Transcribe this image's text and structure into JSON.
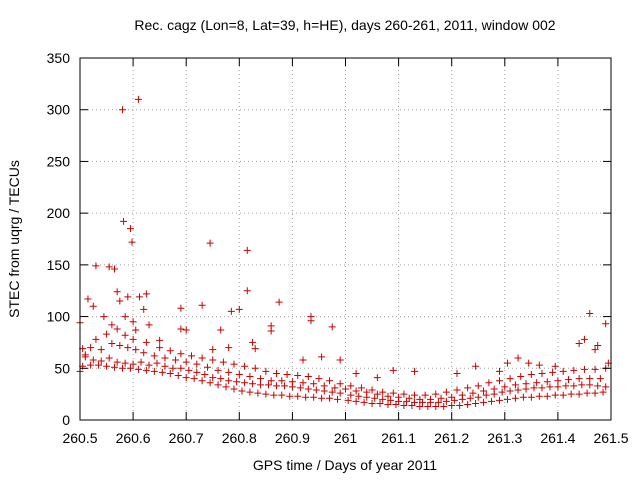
{
  "chart_data": {
    "type": "scatter",
    "title": "Rec. cagz (Lon=8, Lat=39, h=HE), days 260-261, 2011, window 002",
    "xlabel": "GPS time / Days of year 2011",
    "ylabel": "STEC from uqrg / TECUs",
    "xlim": [
      260.5,
      261.5
    ],
    "ylim": [
      0,
      350
    ],
    "x_ticks": [
      260.5,
      260.6,
      260.7,
      260.8,
      260.9,
      261,
      261.1,
      261.2,
      261.3,
      261.4,
      261.5
    ],
    "x_tick_labels": [
      "260.5",
      "260.6",
      "260.7",
      "260.8",
      "260.9",
      "261",
      "261.1",
      "261.2",
      "261.3",
      "261.4",
      "261.5"
    ],
    "y_ticks": [
      0,
      50,
      100,
      150,
      200,
      250,
      300,
      350
    ],
    "y_tick_labels": [
      "0",
      "50",
      "100",
      "150",
      "200",
      "250",
      "300",
      "350"
    ],
    "grid": true,
    "grid_style": "dotted",
    "legend": "none",
    "marker": "plus",
    "marker_color": "#cc0000",
    "series": [
      {
        "points": [
          [
            260.505,
            52
          ],
          [
            260.52,
            53
          ],
          [
            260.535,
            53
          ],
          [
            260.55,
            52
          ],
          [
            260.565,
            51
          ],
          [
            260.58,
            50
          ],
          [
            260.595,
            50
          ],
          [
            260.61,
            49
          ],
          [
            260.625,
            48
          ],
          [
            260.64,
            47
          ],
          [
            260.655,
            46
          ],
          [
            260.67,
            45
          ],
          [
            260.685,
            43
          ],
          [
            260.7,
            41
          ],
          [
            260.715,
            40
          ],
          [
            260.73,
            38
          ],
          [
            260.745,
            36
          ],
          [
            260.76,
            34
          ],
          [
            260.775,
            32
          ],
          [
            260.79,
            30
          ],
          [
            260.805,
            28
          ],
          [
            260.82,
            27
          ],
          [
            260.835,
            26
          ],
          [
            260.85,
            25
          ],
          [
            260.865,
            24
          ],
          [
            260.88,
            24
          ],
          [
            260.895,
            23
          ],
          [
            260.91,
            23
          ],
          [
            260.925,
            22
          ],
          [
            260.94,
            22
          ],
          [
            260.955,
            21
          ],
          [
            260.97,
            21
          ],
          [
            260.985,
            20
          ],
          [
            261.005,
            19
          ],
          [
            261.02,
            18
          ],
          [
            261.035,
            17
          ],
          [
            261.05,
            16
          ],
          [
            261.065,
            16
          ],
          [
            261.08,
            15
          ],
          [
            261.095,
            15
          ],
          [
            261.11,
            14
          ],
          [
            261.125,
            14
          ],
          [
            261.14,
            13
          ],
          [
            261.155,
            13
          ],
          [
            261.17,
            13
          ],
          [
            261.185,
            13
          ],
          [
            261.2,
            14
          ],
          [
            261.215,
            14
          ],
          [
            261.23,
            15
          ],
          [
            261.245,
            16
          ],
          [
            261.26,
            17
          ],
          [
            261.275,
            18
          ],
          [
            261.29,
            19
          ],
          [
            261.305,
            20
          ],
          [
            261.32,
            21
          ],
          [
            261.335,
            22
          ],
          [
            261.35,
            22
          ],
          [
            261.365,
            23
          ],
          [
            261.38,
            23
          ],
          [
            261.395,
            24
          ],
          [
            261.41,
            24
          ],
          [
            261.425,
            25
          ],
          [
            261.44,
            25
          ],
          [
            261.455,
            26
          ],
          [
            261.47,
            26
          ],
          [
            261.485,
            27
          ],
          [
            260.51,
            61
          ],
          [
            260.525,
            58
          ],
          [
            260.54,
            57
          ],
          [
            260.555,
            60
          ],
          [
            260.57,
            56
          ],
          [
            260.585,
            55
          ],
          [
            260.6,
            54
          ],
          [
            260.615,
            56
          ],
          [
            260.63,
            53
          ],
          [
            260.645,
            55
          ],
          [
            260.66,
            52
          ],
          [
            260.675,
            50
          ],
          [
            260.69,
            50
          ],
          [
            260.705,
            48
          ],
          [
            260.72,
            46
          ],
          [
            260.735,
            44
          ],
          [
            260.75,
            41
          ],
          [
            260.765,
            40
          ],
          [
            260.78,
            38
          ],
          [
            260.795,
            37
          ],
          [
            260.81,
            36
          ],
          [
            260.825,
            35
          ],
          [
            260.84,
            34
          ],
          [
            260.855,
            34
          ],
          [
            260.87,
            33
          ],
          [
            260.885,
            33
          ],
          [
            260.9,
            32
          ],
          [
            260.915,
            31
          ],
          [
            260.93,
            30
          ],
          [
            260.945,
            29
          ],
          [
            260.96,
            28
          ],
          [
            260.975,
            27
          ],
          [
            260.99,
            26
          ],
          [
            261.01,
            24
          ],
          [
            261.025,
            23
          ],
          [
            261.04,
            22
          ],
          [
            261.055,
            21
          ],
          [
            261.07,
            20
          ],
          [
            261.085,
            19
          ],
          [
            261.1,
            18
          ],
          [
            261.115,
            18
          ],
          [
            261.13,
            17
          ],
          [
            261.145,
            17
          ],
          [
            261.16,
            17
          ],
          [
            261.175,
            17
          ],
          [
            261.19,
            18
          ],
          [
            261.205,
            19
          ],
          [
            261.22,
            20
          ],
          [
            261.235,
            21
          ],
          [
            261.25,
            22
          ],
          [
            261.265,
            24
          ],
          [
            261.28,
            25
          ],
          [
            261.295,
            27
          ],
          [
            261.31,
            28
          ],
          [
            261.325,
            29
          ],
          [
            261.34,
            30
          ],
          [
            261.355,
            31
          ],
          [
            261.37,
            31
          ],
          [
            261.385,
            32
          ],
          [
            261.4,
            32
          ],
          [
            261.415,
            33
          ],
          [
            261.43,
            33
          ],
          [
            261.445,
            34
          ],
          [
            261.46,
            34
          ],
          [
            261.475,
            33
          ],
          [
            261.49,
            32
          ],
          [
            260.52,
            70
          ],
          [
            260.54,
            68
          ],
          [
            260.56,
            74
          ],
          [
            260.575,
            72
          ],
          [
            260.59,
            70
          ],
          [
            260.605,
            68
          ],
          [
            260.62,
            65
          ],
          [
            260.64,
            62
          ],
          [
            260.66,
            60
          ],
          [
            260.68,
            58
          ],
          [
            260.7,
            56
          ],
          [
            260.72,
            54
          ],
          [
            260.74,
            51
          ],
          [
            260.76,
            48
          ],
          [
            260.78,
            46
          ],
          [
            260.8,
            44
          ],
          [
            260.82,
            42
          ],
          [
            260.84,
            40
          ],
          [
            260.86,
            38
          ],
          [
            260.88,
            38
          ],
          [
            260.9,
            37
          ],
          [
            260.92,
            36
          ],
          [
            260.94,
            35
          ],
          [
            260.96,
            33
          ],
          [
            260.98,
            31
          ],
          [
            261.0,
            30
          ],
          [
            261.02,
            28
          ],
          [
            261.04,
            27
          ],
          [
            261.06,
            25
          ],
          [
            261.08,
            23
          ],
          [
            261.1,
            22
          ],
          [
            261.12,
            21
          ],
          [
            261.14,
            20
          ],
          [
            261.16,
            20
          ],
          [
            261.18,
            21
          ],
          [
            261.2,
            22
          ],
          [
            261.22,
            24
          ],
          [
            261.24,
            26
          ],
          [
            261.26,
            28
          ],
          [
            261.28,
            30
          ],
          [
            261.3,
            32
          ],
          [
            261.32,
            34
          ],
          [
            261.34,
            35
          ],
          [
            261.36,
            36
          ],
          [
            261.38,
            37
          ],
          [
            261.4,
            38
          ],
          [
            261.42,
            39
          ],
          [
            261.44,
            40
          ],
          [
            261.46,
            40
          ],
          [
            261.48,
            40
          ],
          [
            260.5,
            47
          ],
          [
            260.53,
            78
          ],
          [
            260.55,
            83
          ],
          [
            260.57,
            88
          ],
          [
            260.585,
            82
          ],
          [
            260.6,
            78
          ],
          [
            260.625,
            75
          ],
          [
            260.65,
            70
          ],
          [
            260.67,
            67
          ],
          [
            260.69,
            64
          ],
          [
            260.71,
            62
          ],
          [
            260.73,
            60
          ],
          [
            260.75,
            58
          ],
          [
            260.77,
            56
          ],
          [
            260.79,
            54
          ],
          [
            260.81,
            52
          ],
          [
            260.83,
            50
          ],
          [
            260.85,
            47
          ],
          [
            260.87,
            45
          ],
          [
            260.89,
            44
          ],
          [
            260.91,
            43
          ],
          [
            260.93,
            42
          ],
          [
            260.95,
            40
          ],
          [
            260.97,
            38
          ],
          [
            260.99,
            35
          ],
          [
            261.01,
            33
          ],
          [
            261.03,
            31
          ],
          [
            261.05,
            29
          ],
          [
            261.07,
            27
          ],
          [
            261.09,
            26
          ],
          [
            261.11,
            25
          ],
          [
            261.13,
            24
          ],
          [
            261.15,
            24
          ],
          [
            261.17,
            25
          ],
          [
            261.19,
            27
          ],
          [
            261.21,
            29
          ],
          [
            261.23,
            31
          ],
          [
            261.25,
            33
          ],
          [
            261.27,
            36
          ],
          [
            261.29,
            38
          ],
          [
            261.31,
            40
          ],
          [
            261.33,
            42
          ],
          [
            261.35,
            44
          ],
          [
            261.37,
            45
          ],
          [
            261.39,
            46
          ],
          [
            261.41,
            47
          ],
          [
            261.43,
            48
          ],
          [
            261.45,
            49
          ],
          [
            261.47,
            49
          ],
          [
            261.49,
            50
          ],
          [
            260.5,
            94
          ],
          [
            260.505,
            69
          ],
          [
            260.51,
            63
          ],
          [
            260.515,
            117
          ],
          [
            260.525,
            110
          ],
          [
            260.53,
            149
          ],
          [
            260.545,
            100
          ],
          [
            260.555,
            148
          ],
          [
            260.56,
            92
          ],
          [
            260.565,
            146
          ],
          [
            260.57,
            124
          ],
          [
            260.575,
            115
          ],
          [
            260.58,
            300
          ],
          [
            260.582,
            192
          ],
          [
            260.585,
            100
          ],
          [
            260.59,
            119
          ],
          [
            260.595,
            185
          ],
          [
            260.598,
            172
          ],
          [
            260.6,
            95
          ],
          [
            260.605,
            87
          ],
          [
            260.61,
            310
          ],
          [
            260.612,
            119
          ],
          [
            260.62,
            107
          ],
          [
            260.63,
            92
          ],
          [
            260.625,
            122
          ],
          [
            260.65,
            77
          ],
          [
            260.69,
            108
          ],
          [
            260.69,
            88
          ],
          [
            260.7,
            87
          ],
          [
            260.73,
            111
          ],
          [
            260.745,
            171
          ],
          [
            260.75,
            68
          ],
          [
            260.765,
            87
          ],
          [
            260.78,
            70
          ],
          [
            260.785,
            105
          ],
          [
            260.8,
            107
          ],
          [
            260.815,
            164
          ],
          [
            260.815,
            125
          ],
          [
            260.825,
            75
          ],
          [
            260.83,
            69
          ],
          [
            260.86,
            91
          ],
          [
            260.86,
            86
          ],
          [
            260.875,
            114
          ],
          [
            260.92,
            58
          ],
          [
            260.935,
            100
          ],
          [
            260.935,
            96
          ],
          [
            260.955,
            61
          ],
          [
            260.975,
            90
          ],
          [
            260.99,
            58
          ],
          [
            261.02,
            45
          ],
          [
            261.06,
            41
          ],
          [
            261.09,
            48
          ],
          [
            261.13,
            47
          ],
          [
            261.21,
            45
          ],
          [
            261.245,
            52
          ],
          [
            261.29,
            47
          ],
          [
            261.305,
            55
          ],
          [
            261.325,
            60
          ],
          [
            261.345,
            55
          ],
          [
            261.365,
            53
          ],
          [
            261.395,
            52
          ],
          [
            261.44,
            74
          ],
          [
            261.45,
            78
          ],
          [
            261.46,
            103
          ],
          [
            261.47,
            68
          ],
          [
            261.475,
            72
          ],
          [
            261.49,
            93
          ],
          [
            261.495,
            55
          ]
        ]
      }
    ]
  }
}
